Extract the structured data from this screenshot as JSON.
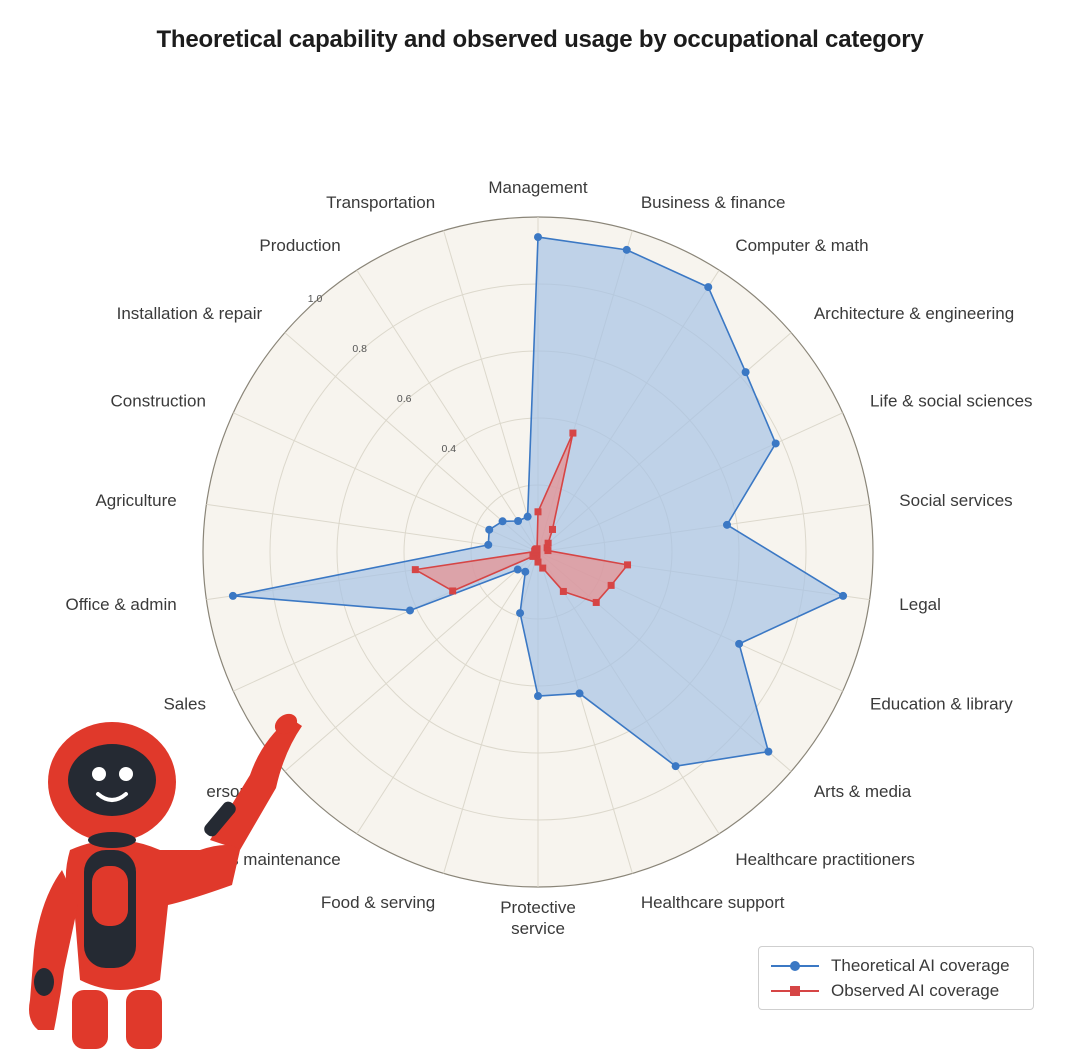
{
  "title": "Theoretical capability and observed usage by occupational category",
  "colors": {
    "theoretical": "#3b78c4",
    "theoretical_fill": "#a7c3e6",
    "observed": "#d64545",
    "observed_fill": "#e88f8f",
    "background_disk": "#f7f4ee",
    "grid": "#dcd8cc"
  },
  "chart_data": {
    "type": "radar",
    "title": "Theoretical capability and observed usage by occupational category",
    "categories": [
      "Management",
      "Business & finance",
      "Computer & math",
      "Architecture & engineering",
      "Life & social sciences",
      "Social services",
      "Legal",
      "Education & library",
      "Arts & media",
      "Healthcare practitioners",
      "Healthcare support",
      "Protective service",
      "Food & serving",
      "Grounds maintenance",
      "Personal care",
      "Sales",
      "Office & admin",
      "Agriculture",
      "Construction",
      "Installation & repair",
      "Production",
      "Transportation"
    ],
    "radial_ticks": [
      0.4,
      0.6,
      0.8,
      1.0
    ],
    "radial_tick_labels": [
      "0.4",
      "0.6",
      "0.8",
      "1.0"
    ],
    "rlim": [
      0,
      1.0
    ],
    "series": [
      {
        "name": "Theoretical AI coverage",
        "marker": "circle",
        "values": [
          0.94,
          0.94,
          0.94,
          0.82,
          0.78,
          0.57,
          0.92,
          0.66,
          0.91,
          0.76,
          0.44,
          0.43,
          0.19,
          0.07,
          0.08,
          0.42,
          0.92,
          0.15,
          0.16,
          0.14,
          0.11,
          0.11
        ]
      },
      {
        "name": "Observed AI coverage",
        "marker": "square",
        "values": [
          0.12,
          0.37,
          0.08,
          0.04,
          0.03,
          0.03,
          0.27,
          0.24,
          0.23,
          0.14,
          0.05,
          0.03,
          0.01,
          0.01,
          0.02,
          0.28,
          0.37,
          0.01,
          0.01,
          0.01,
          0.01,
          0.01
        ]
      }
    ],
    "legend": {
      "position": "bottom-right",
      "entries": [
        "Theoretical AI coverage",
        "Observed AI coverage"
      ]
    },
    "grid": true
  },
  "display_labels": [
    "Management",
    "Business & finance",
    "Computer & math",
    "Architecture & engineering",
    "Life & social sciences",
    "Social services",
    "Legal",
    "Education & library",
    "Arts & media",
    "Healthcare practitioners",
    "Healthcare support",
    "Protective\nservice",
    "Food & serving",
    "nds maintenance",
    "ersonal",
    "Sales",
    "Office & admin",
    "Agriculture",
    "Construction",
    "Installation & repair",
    "Production",
    "Transportation"
  ],
  "illustration": {
    "icon": "pointing-robot-icon"
  }
}
